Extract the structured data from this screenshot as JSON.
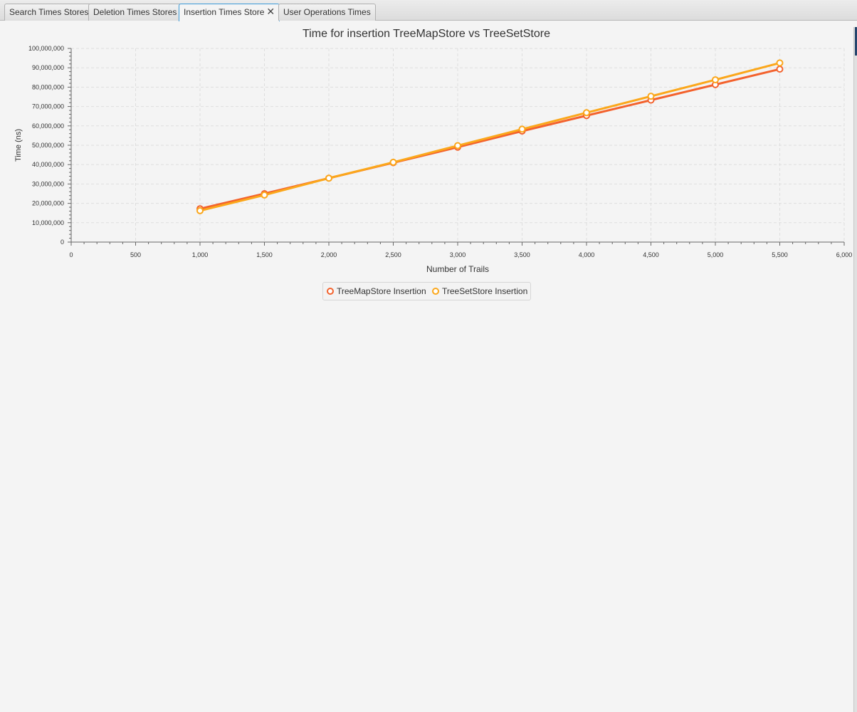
{
  "tabs": [
    {
      "label": "Search Times Stores",
      "active": false
    },
    {
      "label": "Deletion Times Stores",
      "active": false
    },
    {
      "label": "Insertion Times Store",
      "active": true,
      "close_icon": "close-icon"
    },
    {
      "label": "User Operations Times",
      "active": false
    }
  ],
  "colors": {
    "series1": "#f3622d",
    "series2": "#fba71b",
    "grid": "#dedede",
    "axis": "#666666",
    "background": "#f4f4f4"
  },
  "chart_data": {
    "type": "line",
    "title": "Time for insertion TreeMapStore vs TreeSetStore",
    "xlabel": "Number of Trails",
    "ylabel": "Time (ns)",
    "xlim": [
      0,
      6000
    ],
    "ylim": [
      0,
      100000000
    ],
    "x_ticks": [
      "0",
      "500",
      "1,000",
      "1,500",
      "2,000",
      "2,500",
      "3,000",
      "3,500",
      "4,000",
      "4,500",
      "5,000",
      "5,500",
      "6,000"
    ],
    "y_ticks": [
      "0",
      "10,000,000",
      "20,000,000",
      "30,000,000",
      "40,000,000",
      "50,000,000",
      "60,000,000",
      "70,000,000",
      "80,000,000",
      "90,000,000",
      "100,000,000"
    ],
    "grid": true,
    "legend_position": "bottom",
    "x": [
      1000,
      1500,
      2000,
      2500,
      3000,
      3500,
      4000,
      4500,
      5000,
      5500
    ],
    "series": [
      {
        "name": "TreeMapStore Insertion",
        "values": [
          17200000,
          25000000,
          33000000,
          41000000,
          49000000,
          57300000,
          65300000,
          73300000,
          81300000,
          89300000
        ]
      },
      {
        "name": "TreeSetStore Insertion",
        "values": [
          16200000,
          24300000,
          33000000,
          41200000,
          49800000,
          58300000,
          66800000,
          75300000,
          83800000,
          92500000
        ]
      }
    ]
  }
}
